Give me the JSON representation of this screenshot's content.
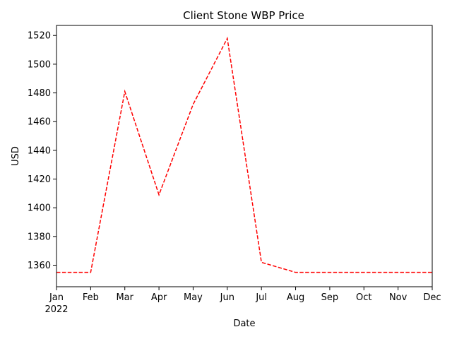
{
  "chart_data": {
    "type": "line",
    "title": "Client Stone WBP Price",
    "xlabel": "Date",
    "ylabel": "USD",
    "x": [
      "2022-01",
      "2022-02",
      "2022-03",
      "2022-04",
      "2022-05",
      "2022-06",
      "2022-07",
      "2022-08",
      "2022-09",
      "2022-10",
      "2022-11",
      "2022-12"
    ],
    "x_tick_labels": [
      "Jan",
      "Feb",
      "Mar",
      "Apr",
      "May",
      "Jun",
      "Jul",
      "Aug",
      "Sep",
      "Oct",
      "Nov",
      "Dec"
    ],
    "x_year_label": "2022",
    "series": [
      {
        "values": [
          1355,
          1355,
          1481,
          1409,
          1472,
          1518,
          1362,
          1355,
          1355,
          1355,
          1355,
          1355
        ],
        "color": "#ff0000",
        "line_style": "dashed"
      }
    ],
    "ylim": [
      1345,
      1527
    ],
    "y_ticks": [
      1360,
      1380,
      1400,
      1420,
      1440,
      1460,
      1480,
      1500,
      1520
    ],
    "grid": false,
    "legend": "none"
  }
}
